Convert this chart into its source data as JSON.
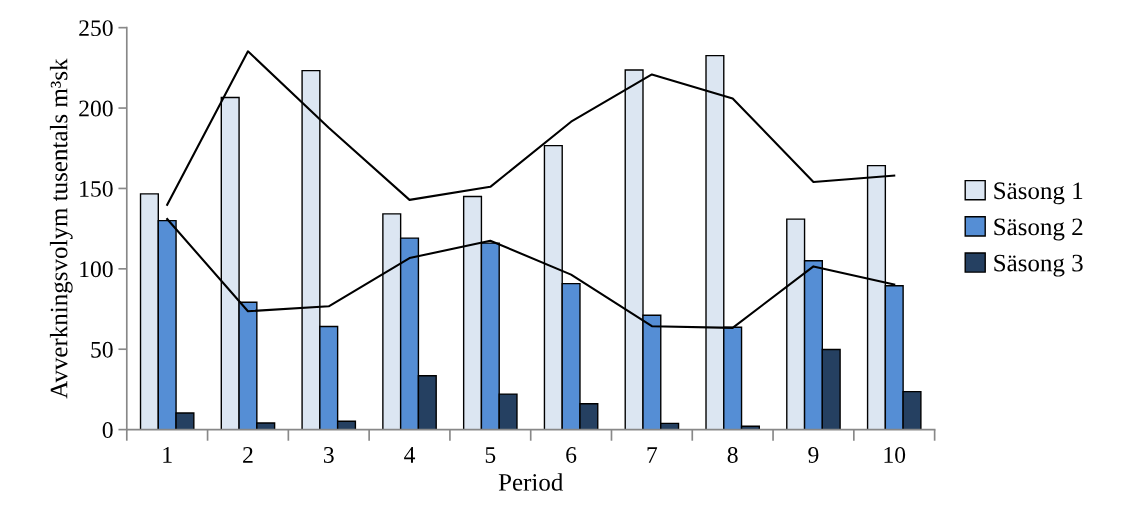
{
  "chart_data": {
    "type": "bar",
    "xlabel": "Period",
    "ylabel": "Avverkningsvolym tusentals m³sk",
    "categories": [
      "1",
      "2",
      "3",
      "4",
      "5",
      "6",
      "7",
      "8",
      "9",
      "10"
    ],
    "ylim": [
      0,
      250
    ],
    "yticks": [
      0,
      50,
      100,
      150,
      200,
      250
    ],
    "grid": false,
    "legend": "right",
    "series": [
      {
        "name": "Säsong 1",
        "color": "#dce6f2",
        "values": [
          146.6,
          206.6,
          223.3,
          134.2,
          145,
          176.6,
          223.7,
          232.6,
          130.9,
          164.2
        ]
      },
      {
        "name": "Säsong 2",
        "color": "#558ed5",
        "values": [
          130,
          79.2,
          64.1,
          119.1,
          116,
          90.8,
          71.1,
          63.7,
          105,
          89.5
        ]
      },
      {
        "name": "Säsong 3",
        "color": "#254061",
        "values": [
          10.3,
          4.1,
          5.2,
          33.5,
          22.1,
          16.1,
          3.9,
          2.1,
          49.8,
          23.6
        ]
      },
      {
        "type": "line",
        "color": "#000000",
        "values": [
          139.8,
          235.3,
          187.8,
          142.9,
          151,
          191.5,
          220.9,
          206,
          154,
          158
        ]
      },
      {
        "type": "line",
        "color": "#000000",
        "values": [
          131,
          73.6,
          76.7,
          106.7,
          117.5,
          96.4,
          64.3,
          63.3,
          101.5,
          90.2
        ]
      }
    ]
  }
}
